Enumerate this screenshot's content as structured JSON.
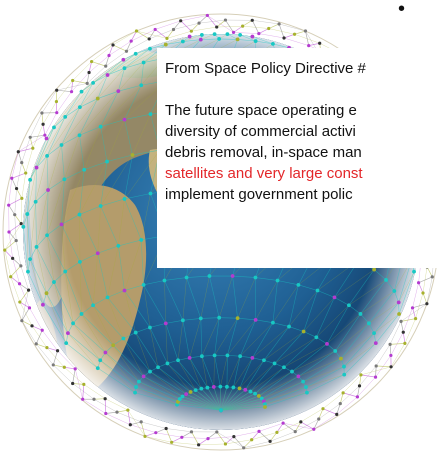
{
  "slide": {
    "bullet": "•"
  },
  "callout": {
    "title": "From Space Policy Directive #",
    "body_lines": [
      "The future space operating e",
      "diversity of commercial activi",
      "debris removal, in-space man"
    ],
    "highlight_line": "satellites and very large const",
    "last_line": "implement government polic"
  },
  "colors": {
    "highlight": "#e3272a",
    "ocean": "#1f5f93",
    "constellation_teal": "#18c8c4",
    "constellation_purple": "#b43bd0",
    "constellation_olive": "#a7b12d"
  },
  "image": {
    "subject": "earth-globe-satellite-constellation"
  }
}
